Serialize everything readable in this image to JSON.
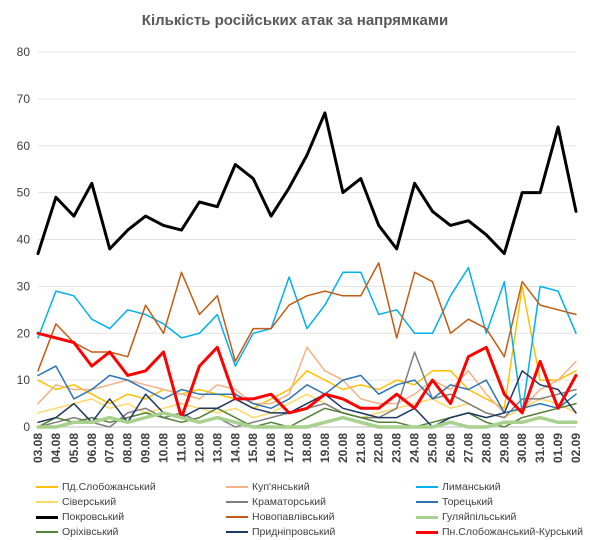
{
  "chart_data": {
    "type": "line",
    "title": "Кількість російських атак за напрямками",
    "xlabel": "",
    "ylabel": "",
    "ylim": [
      0,
      80
    ],
    "yticks": [
      0,
      10,
      20,
      30,
      40,
      50,
      60,
      70,
      80
    ],
    "grid": true,
    "legend_position": "bottom",
    "categories": [
      "03.08",
      "04.08",
      "05.08",
      "06.08",
      "07.08",
      "08.08",
      "09.08",
      "10.08",
      "11.08",
      "12.08",
      "13.08",
      "14.08",
      "15.08",
      "16.08",
      "17.08",
      "18.08",
      "19.08",
      "20.08",
      "21.08",
      "22.08",
      "23.08",
      "24.08",
      "25.08",
      "26.08",
      "27.08",
      "28.08",
      "29.08",
      "30.08",
      "31.08",
      "01.09",
      "02.09"
    ],
    "series": [
      {
        "name": "Пд.Слобожанський",
        "color": "#ffc000",
        "width": 1.5,
        "values": [
          10,
          8,
          9,
          7,
          5,
          7,
          6,
          8,
          7,
          8,
          7,
          6,
          4,
          6,
          8,
          12,
          10,
          8,
          9,
          8,
          10,
          9,
          12,
          12,
          8,
          6,
          4,
          30,
          10,
          10,
          12
        ]
      },
      {
        "name": "Куп'янський",
        "color": "#f4b183",
        "width": 1.5,
        "values": [
          5,
          9,
          8,
          8,
          9,
          10,
          9,
          8,
          7,
          6,
          9,
          8,
          5,
          5,
          7,
          17,
          12,
          10,
          6,
          5,
          5,
          7,
          10,
          8,
          12,
          7,
          3,
          4,
          8,
          10,
          14
        ]
      },
      {
        "name": "Лиманський",
        "color": "#00b0f0",
        "width": 1.5,
        "values": [
          19,
          29,
          28,
          23,
          21,
          25,
          24,
          22,
          19,
          20,
          24,
          13,
          20,
          21,
          32,
          21,
          26,
          33,
          33,
          24,
          25,
          20,
          20,
          28,
          34,
          20,
          31,
          3,
          30,
          29,
          20
        ]
      },
      {
        "name": "Сіверський",
        "color": "#ffd966",
        "width": 1.5,
        "values": [
          3,
          4,
          5,
          6,
          4,
          5,
          3,
          4,
          5,
          4,
          3,
          4,
          2,
          3,
          5,
          7,
          5,
          3,
          2,
          3,
          4,
          5,
          6,
          4,
          5,
          3,
          2,
          4,
          6,
          5,
          3
        ]
      },
      {
        "name": "Краматорський",
        "color": "#7f7f7f",
        "width": 1.5,
        "values": [
          0,
          1,
          2,
          1,
          0,
          3,
          4,
          2,
          3,
          1,
          2,
          0,
          1,
          2,
          3,
          4,
          5,
          3,
          2,
          2,
          4,
          16,
          6,
          7,
          5,
          3,
          2,
          6,
          6,
          7,
          8
        ]
      },
      {
        "name": "Торецький",
        "color": "#2e75b6",
        "width": 1.5,
        "values": [
          11,
          13,
          6,
          8,
          11,
          10,
          8,
          6,
          8,
          7,
          7,
          7,
          5,
          4,
          6,
          9,
          7,
          10,
          11,
          7,
          9,
          10,
          6,
          9,
          8,
          10,
          3,
          4,
          5,
          4,
          7
        ]
      },
      {
        "name": "Покровський",
        "color": "#000000",
        "width": 3,
        "values": [
          37,
          49,
          45,
          52,
          38,
          42,
          45,
          43,
          42,
          48,
          47,
          56,
          53,
          45,
          51,
          58,
          67,
          50,
          53,
          43,
          38,
          52,
          46,
          43,
          44,
          41,
          37,
          50,
          50,
          64,
          46
        ]
      },
      {
        "name": "Новопавлівський",
        "color": "#c55a11",
        "width": 1.5,
        "values": [
          12,
          22,
          18,
          16,
          16,
          15,
          26,
          20,
          33,
          24,
          28,
          14,
          21,
          21,
          26,
          28,
          29,
          28,
          28,
          35,
          19,
          33,
          31,
          20,
          23,
          21,
          15,
          31,
          26,
          25,
          24
        ]
      },
      {
        "name": "Гуляйпільський",
        "color": "#a9d18e",
        "width": 3.5,
        "values": [
          0,
          0,
          1,
          1,
          2,
          1,
          2,
          3,
          2,
          1,
          2,
          1,
          0,
          0,
          0,
          0,
          1,
          2,
          1,
          0,
          0,
          0,
          0,
          1,
          0,
          0,
          1,
          1,
          2,
          1,
          1
        ]
      },
      {
        "name": "Оріхівський",
        "color": "#548235",
        "width": 1.5,
        "values": [
          0,
          2,
          1,
          2,
          1,
          2,
          3,
          2,
          1,
          2,
          4,
          2,
          0,
          1,
          0,
          2,
          4,
          3,
          2,
          1,
          1,
          0,
          1,
          2,
          3,
          1,
          0,
          2,
          3,
          4,
          5
        ]
      },
      {
        "name": "Придніпровський",
        "color": "#1f3864",
        "width": 1.5,
        "values": [
          1,
          2,
          5,
          1,
          6,
          1,
          7,
          3,
          2,
          4,
          4,
          6,
          4,
          3,
          3,
          5,
          7,
          4,
          3,
          2,
          2,
          4,
          0,
          2,
          3,
          2,
          3,
          12,
          9,
          8,
          3
        ]
      },
      {
        "name": "Пн.Слобожанський-Курський",
        "color": "#ff0000",
        "width": 3,
        "values": [
          20,
          19,
          18,
          13,
          16,
          11,
          12,
          16,
          2,
          13,
          17,
          6,
          6,
          7,
          3,
          4,
          7,
          6,
          4,
          4,
          7,
          4,
          10,
          5,
          15,
          17,
          7,
          3,
          14,
          4,
          11
        ]
      }
    ]
  }
}
